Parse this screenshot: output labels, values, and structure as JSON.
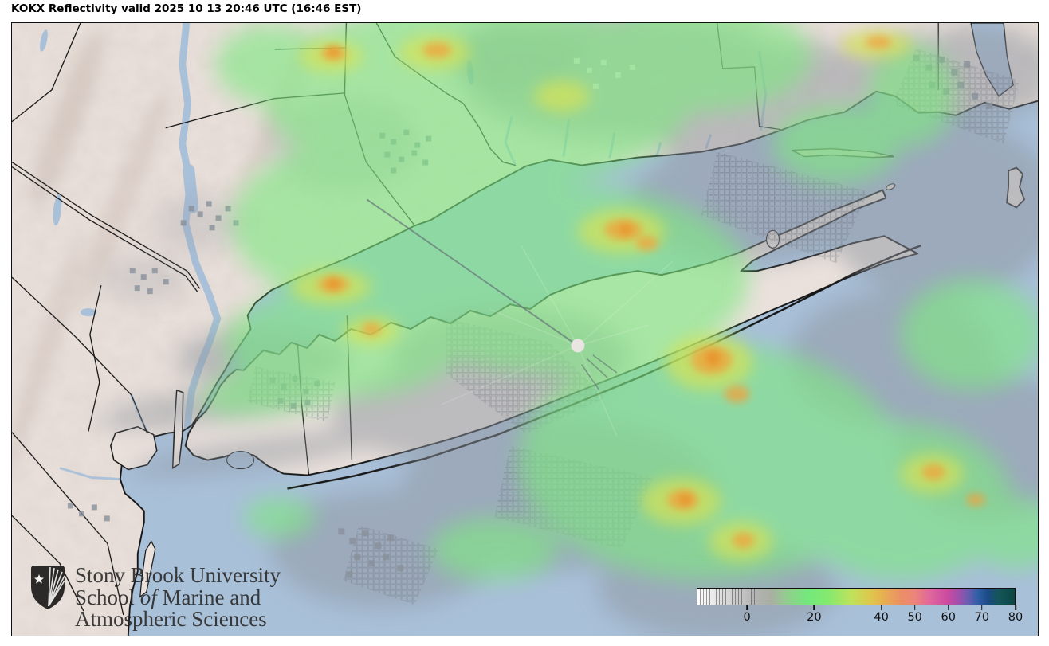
{
  "header": {
    "title": "KOKX Reflectivity valid 2025 10 13 20:46 UTC (16:46 EST)"
  },
  "logo": {
    "line1": "Stony Brook University",
    "line2_pre": "School ",
    "line2_italic": "of",
    "line2_post": " Marine and",
    "line3": "Atmospheric Sciences"
  },
  "colorbar": {
    "min": -15,
    "max": 80,
    "ticks": [
      0,
      20,
      40,
      50,
      60,
      70,
      80
    ],
    "tick_labels": [
      "0",
      "20",
      "40",
      "50",
      "60",
      "70",
      "80"
    ],
    "discrete_segment_end": 3,
    "gradient": [
      {
        "v": -15,
        "color": "#ffffff"
      },
      {
        "v": -5,
        "color": "#d2d2d2"
      },
      {
        "v": 2,
        "color": "#b4b4b4"
      },
      {
        "v": 7,
        "color": "#a9afa3"
      },
      {
        "v": 12,
        "color": "#90cf8c"
      },
      {
        "v": 18,
        "color": "#74e87d"
      },
      {
        "v": 24,
        "color": "#83e970"
      },
      {
        "v": 31,
        "color": "#bfe25c"
      },
      {
        "v": 37,
        "color": "#dfc64c"
      },
      {
        "v": 41,
        "color": "#e7ad52"
      },
      {
        "v": 46,
        "color": "#eb8f66"
      },
      {
        "v": 50,
        "color": "#ec8579"
      },
      {
        "v": 55,
        "color": "#dd659e"
      },
      {
        "v": 60,
        "color": "#cb4aa0"
      },
      {
        "v": 63,
        "color": "#a150ab"
      },
      {
        "v": 66,
        "color": "#6c5cb0"
      },
      {
        "v": 69,
        "color": "#2e5fa5"
      },
      {
        "v": 72,
        "color": "#1c4a86"
      },
      {
        "v": 75,
        "color": "#14565a"
      },
      {
        "v": 80,
        "color": "#0c4543"
      }
    ]
  },
  "map": {
    "colors": {
      "land": "#eae1dc",
      "water": "#a9c0d9",
      "boundary": "#141414",
      "echo_gray": "#8e959e",
      "echo_green": "#7ee881",
      "echo_yellow": "#d5e256",
      "echo_orange": "#f0a23c",
      "radar_site_marker": "#e9e5e2"
    }
  }
}
